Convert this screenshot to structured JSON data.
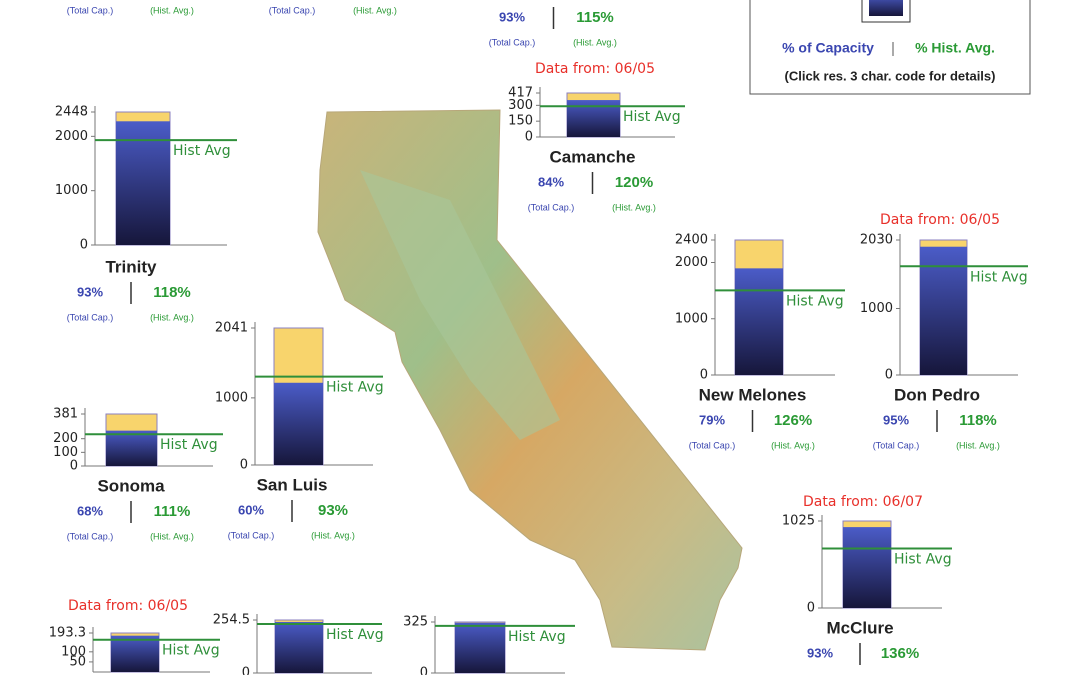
{
  "legend": {
    "pct_capacity_label": "% of Capacity",
    "pct_hist_label": "% Hist. Avg.",
    "note": "(Click res. 3 char. code for details)"
  },
  "reservoirs": [
    {
      "cap_note": "(Total Cap.)",
      "hist_note": "(Hist. Avg.)"
    },
    {
      "cap_note": "(Total Cap.)",
      "hist_note": "(Hist. Avg.)"
    },
    {
      "pct_capacity": "93%",
      "pct_hist_avg": "115%",
      "cap_note": "(Total Cap.)",
      "hist_note": "(Hist. Avg.)"
    },
    {
      "name": "Camanche",
      "data_from": "Data from: 06/05",
      "ylim": [
        0,
        417
      ],
      "ticks": [
        417,
        300,
        150,
        0
      ],
      "capacity": 417,
      "storage": 350,
      "hist_avg": 292,
      "avg_label": "Hist Avg",
      "pct_capacity": "84%",
      "pct_hist_avg": "120%",
      "cap_note": "(Total Cap.)",
      "hist_note": "(Hist. Avg.)"
    },
    {
      "name": "Trinity",
      "ylim": [
        0,
        2448
      ],
      "ticks": [
        2448,
        2000,
        1000,
        0
      ],
      "capacity": 2448,
      "storage": 2277,
      "hist_avg": 1930,
      "avg_label": "Hist Avg",
      "pct_capacity": "93%",
      "pct_hist_avg": "118%",
      "cap_note": "(Total Cap.)",
      "hist_note": "(Hist. Avg.)"
    },
    {
      "name": "New Melones",
      "ylim": [
        0,
        2400
      ],
      "ticks": [
        2400,
        2000,
        1000,
        0
      ],
      "capacity": 2400,
      "storage": 1896,
      "hist_avg": 1505,
      "avg_label": "Hist Avg",
      "pct_capacity": "79%",
      "pct_hist_avg": "126%",
      "cap_note": "(Total Cap.)",
      "hist_note": "(Hist. Avg.)"
    },
    {
      "name": "Don Pedro",
      "data_from": "Data from: 06/05",
      "ylim": [
        0,
        2030
      ],
      "ticks": [
        2030,
        1000,
        0
      ],
      "capacity": 2030,
      "storage": 1929,
      "hist_avg": 1635,
      "avg_label": "Hist Avg",
      "pct_capacity": "95%",
      "pct_hist_avg": "118%",
      "cap_note": "(Total Cap.)",
      "hist_note": "(Hist. Avg.)"
    },
    {
      "name": "San Luis",
      "ylim": [
        0,
        2041
      ],
      "ticks": [
        2041,
        1000,
        0
      ],
      "capacity": 2041,
      "storage": 1225,
      "hist_avg": 1317,
      "avg_label": "Hist Avg",
      "pct_capacity": "60%",
      "pct_hist_avg": "93%",
      "cap_note": "(Total Cap.)",
      "hist_note": "(Hist. Avg.)"
    },
    {
      "name": "Sonoma",
      "ylim": [
        0,
        381
      ],
      "ticks": [
        381,
        200,
        100,
        0
      ],
      "capacity": 381,
      "storage": 259,
      "hist_avg": 233,
      "avg_label": "Hist Avg",
      "pct_capacity": "68%",
      "pct_hist_avg": "111%",
      "cap_note": "(Total Cap.)",
      "hist_note": "(Hist. Avg.)"
    },
    {
      "name": "McClure",
      "data_from": "Data from: 06/07",
      "ylim": [
        0,
        1025
      ],
      "ticks": [
        1025,
        0
      ],
      "capacity": 1025,
      "storage": 953,
      "hist_avg": 701,
      "avg_label": "Hist Avg",
      "pct_capacity": "93%",
      "pct_hist_avg": "136%"
    },
    {
      "data_from": "Data from: 06/05",
      "ylim": [
        0,
        193.3
      ],
      "ticks": [
        193.3,
        100,
        50
      ],
      "capacity": 193.3,
      "storage": 180,
      "hist_avg": 160,
      "avg_label": "Hist Avg"
    },
    {
      "ylim": [
        0,
        254.5
      ],
      "ticks": [
        254.5,
        0
      ],
      "capacity": 254.5,
      "storage": 245,
      "hist_avg": 235,
      "avg_label": "Hist Avg"
    },
    {
      "ylim": [
        0,
        325
      ],
      "ticks": [
        325,
        0
      ],
      "capacity": 325,
      "storage": 320,
      "hist_avg": 300,
      "avg_label": "Hist Avg"
    }
  ]
}
